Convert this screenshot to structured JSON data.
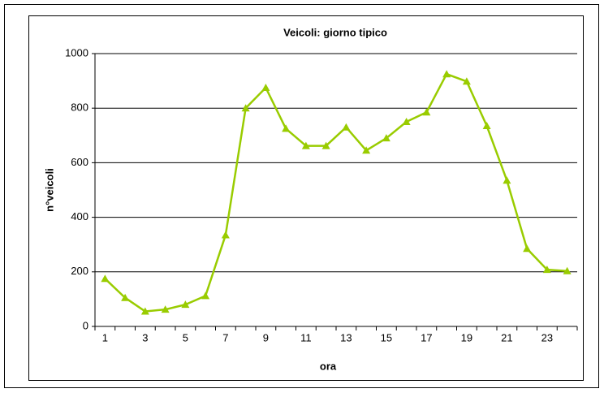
{
  "chart_data": {
    "type": "line",
    "title": "Veicoli: giorno tipico",
    "x_label": "ora",
    "y_label": "n°veicoli",
    "categories": [
      1,
      null,
      3,
      null,
      5,
      null,
      7,
      null,
      9,
      null,
      11,
      null,
      13,
      null,
      15,
      null,
      17,
      null,
      19,
      null,
      21,
      null,
      23,
      null
    ],
    "series": [
      {
        "name": "Veicoli",
        "color": "#99cc00",
        "values": [
          175,
          105,
          55,
          62,
          80,
          112,
          335,
          800,
          875,
          725,
          662,
          662,
          730,
          645,
          690,
          750,
          785,
          925,
          898,
          735,
          535,
          285,
          208,
          203
        ]
      }
    ],
    "ylim": [
      0,
      1000
    ],
    "yticks": [
      0,
      200,
      400,
      600,
      800,
      1000
    ],
    "grid": true
  }
}
